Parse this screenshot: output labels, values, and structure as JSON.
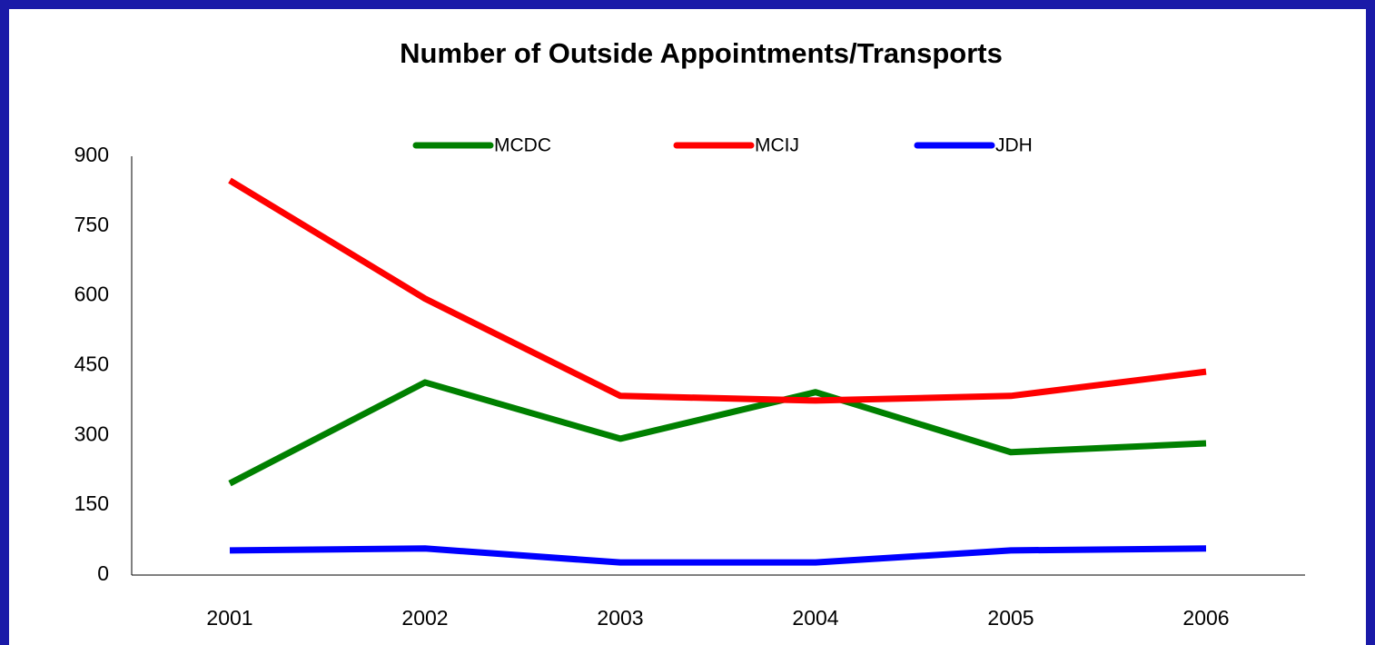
{
  "chart_data": {
    "type": "line",
    "title": "Number of Outside Appointments/Transports",
    "categories": [
      "2001",
      "2002",
      "2003",
      "2004",
      "2005",
      "2006"
    ],
    "series": [
      {
        "name": "MCDC",
        "color": "#008000",
        "values": [
          197,
          414,
          293,
          393,
          264,
          283
        ]
      },
      {
        "name": "MCIJ",
        "color": "#ff0000",
        "values": [
          848,
          594,
          385,
          375,
          385,
          437
        ]
      },
      {
        "name": "JDH",
        "color": "#0000ff",
        "values": [
          53,
          57,
          27,
          27,
          53,
          57
        ]
      }
    ],
    "ylim": [
      0,
      900
    ],
    "yticks": [
      0,
      150,
      300,
      450,
      600,
      750,
      900
    ],
    "grid": false,
    "legend": "top"
  }
}
